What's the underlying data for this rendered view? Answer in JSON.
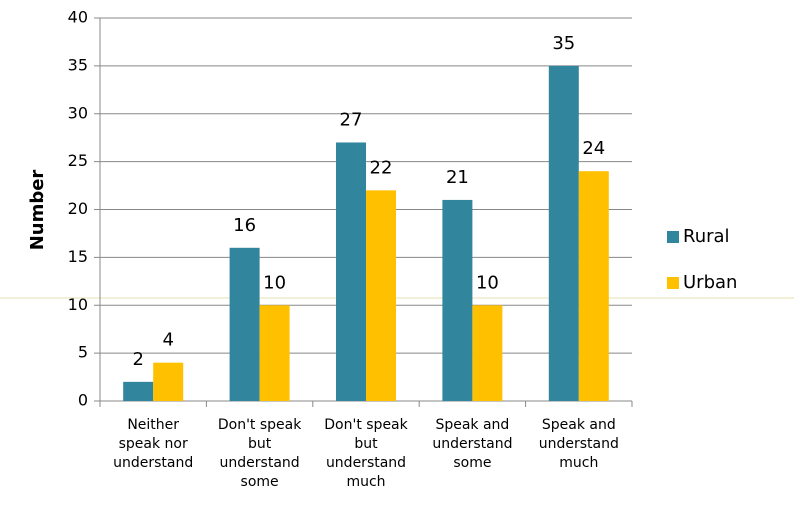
{
  "chart_data": {
    "type": "bar",
    "categories": [
      "Neither speak nor understand",
      "Don't speak but understand some",
      "Don't speak but understand much",
      "Speak and understand some",
      "Speak and understand much"
    ],
    "series": [
      {
        "name": "Rural",
        "color": "#31859c",
        "values": [
          2,
          16,
          27,
          21,
          35
        ]
      },
      {
        "name": "Urban",
        "color": "#ffc000",
        "values": [
          4,
          10,
          22,
          10,
          24
        ]
      }
    ],
    "ylabel": "Number",
    "ylim": [
      0,
      40
    ],
    "yticks": [
      0,
      5,
      10,
      15,
      20,
      25,
      30,
      35,
      40
    ],
    "grid": true,
    "legend": "right"
  }
}
